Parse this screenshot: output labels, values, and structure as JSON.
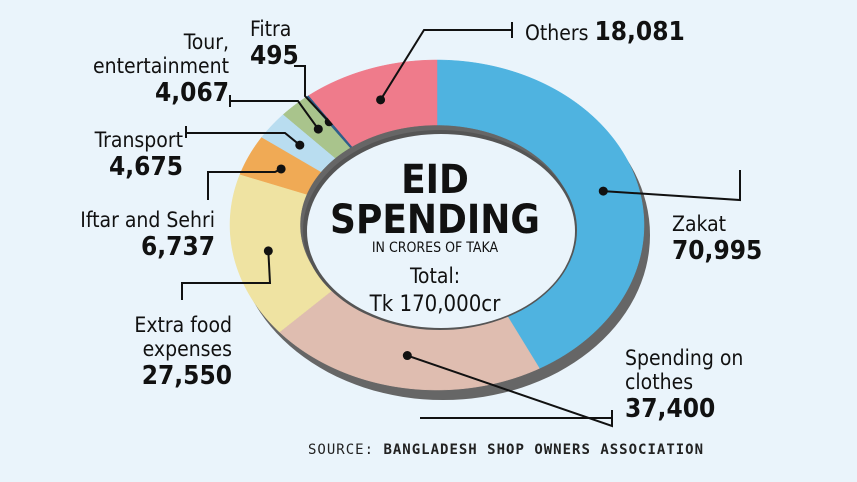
{
  "chart_data": {
    "type": "donut",
    "title": "EID SPENDING",
    "subtitle": "IN CRORES OF TAKA",
    "total_label": "Total:",
    "total": "Tk 170,000cr",
    "categories": [
      "Zakat",
      "Spending on clothes",
      "Extra food expenses",
      "Iftar and Sehri",
      "Transport",
      "Tour, entertainment",
      "Fitra",
      "Others"
    ],
    "values": [
      70995,
      37400,
      27550,
      6737,
      4675,
      4067,
      495,
      18081
    ],
    "value_labels": [
      "70,995",
      "37,400",
      "27,550",
      "6,737",
      "4,675",
      "4,067",
      "495",
      "18,081"
    ],
    "colors": [
      "#4fb3e0",
      "#dfbdb0",
      "#efe3a2",
      "#f0aa55",
      "#b9ddf0",
      "#a9c48c",
      "#2f5f8a",
      "#ef7b8b"
    ],
    "source_label": "SOURCE:",
    "source": "BANGLADESH SHOP OWNERS ASSOCIATION"
  }
}
